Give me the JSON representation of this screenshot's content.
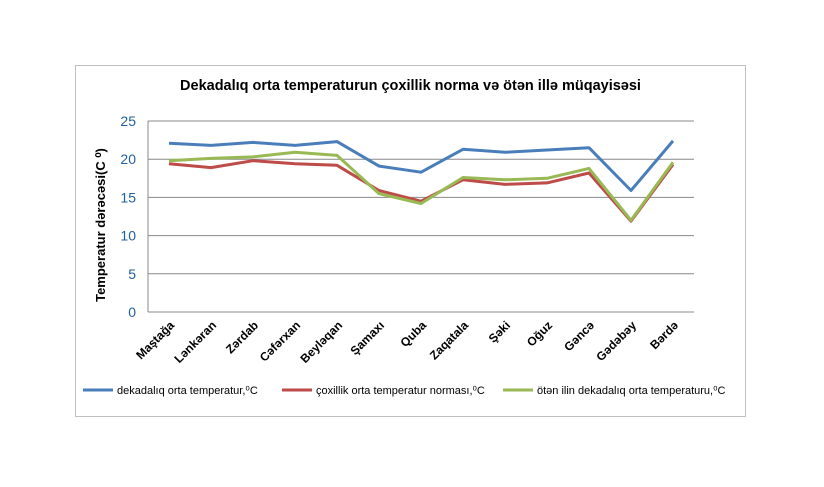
{
  "chart_data": {
    "type": "line",
    "title": "Dekadalıq orta temperaturun çoxillik  norma və ötən illə müqayisəsi",
    "ylabel": "Temperatur dərəcəsi(C ⁰)",
    "xlabel": "",
    "ylim": [
      0,
      25
    ],
    "yticks": [
      "0",
      "5",
      "10",
      "15",
      "20",
      "25"
    ],
    "grid": true,
    "legend_position": "bottom",
    "categories": [
      "Maştağa",
      "Lənkəran",
      "Zərdab",
      "Cəfərxan",
      "Beyləqan",
      "Şamaxı",
      "Quba",
      "Zaqatala",
      "Şəki",
      "Oğuz",
      "Gəncə",
      "Gədəbəy",
      "Bərdə"
    ],
    "series": [
      {
        "name": "dekadalıq orta temperatur,⁰C",
        "color": "#4a7ebb",
        "values": [
          22.1,
          21.8,
          22.2,
          21.8,
          22.3,
          19.1,
          18.3,
          21.3,
          20.9,
          21.2,
          21.5,
          15.9,
          22.4
        ]
      },
      {
        "name": "çoxillik orta temperatur norması,⁰C",
        "color": "#be4b48",
        "values": [
          19.4,
          18.9,
          19.8,
          19.4,
          19.2,
          15.9,
          14.5,
          17.3,
          16.7,
          16.9,
          18.2,
          11.9,
          19.3
        ]
      },
      {
        "name": "ötən ilin dekadalıq orta temperaturu,⁰C",
        "color": "#98b954",
        "values": [
          19.8,
          20.1,
          20.3,
          20.9,
          20.5,
          15.5,
          14.2,
          17.6,
          17.3,
          17.5,
          18.8,
          12.0,
          19.6
        ]
      }
    ]
  }
}
